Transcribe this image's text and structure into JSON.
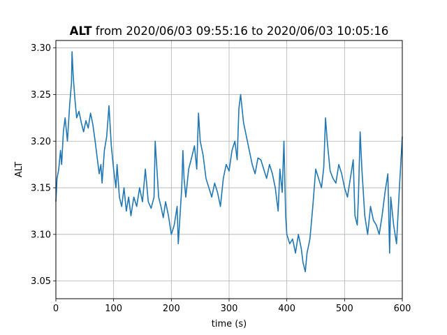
{
  "chart_data": {
    "type": "line",
    "title": {
      "bold": "ALT",
      "rest": " from 2020/06/03 09:55:16 to 2020/06/03 10:05:16"
    },
    "xlabel": "time (s)",
    "ylabel": "ALT",
    "xlim": [
      0,
      600
    ],
    "ylim": [
      3.031,
      3.308
    ],
    "xticks": [
      0,
      100,
      200,
      300,
      400,
      500,
      600
    ],
    "yticks": [
      3.05,
      3.1,
      3.15,
      3.2,
      3.25,
      3.3
    ],
    "ytick_labels": [
      "3.05",
      "3.10",
      "3.15",
      "3.20",
      "3.25",
      "3.30"
    ],
    "grid": true,
    "line_color": "#1f77b4",
    "series": [
      {
        "x": [
          0,
          2,
          5,
          8,
          10,
          13,
          16,
          20,
          24,
          27,
          28,
          30,
          33,
          36,
          40,
          44,
          48,
          52,
          56,
          60,
          64,
          68,
          72,
          75,
          78,
          80,
          84,
          88,
          92,
          96,
          100,
          102,
          104,
          106,
          110,
          114,
          118,
          122,
          126,
          130,
          135,
          140,
          145,
          150,
          155,
          160,
          165,
          170,
          172,
          175,
          178,
          182,
          186,
          190,
          195,
          200,
          205,
          210,
          212,
          215,
          218,
          220,
          222,
          225,
          230,
          235,
          240,
          244,
          247,
          250,
          255,
          260,
          265,
          270,
          275,
          280,
          285,
          290,
          295,
          300,
          305,
          310,
          314,
          317,
          320,
          325,
          330,
          335,
          340,
          345,
          350,
          355,
          360,
          365,
          370,
          375,
          380,
          385,
          388,
          392,
          395,
          398,
          400,
          405,
          410,
          415,
          420,
          425,
          428,
          432,
          435,
          440,
          445,
          450,
          455,
          460,
          464,
          467,
          470,
          475,
          480,
          485,
          490,
          495,
          500,
          505,
          510,
          515,
          518,
          522,
          524,
          527,
          530,
          535,
          540,
          545,
          550,
          555,
          560,
          565,
          570,
          575,
          578,
          580,
          585,
          590,
          595,
          600
        ],
        "y": [
          3.135,
          3.16,
          3.17,
          3.19,
          3.175,
          3.21,
          3.225,
          3.2,
          3.24,
          3.262,
          3.296,
          3.27,
          3.245,
          3.225,
          3.232,
          3.22,
          3.21,
          3.222,
          3.214,
          3.23,
          3.218,
          3.2,
          3.18,
          3.165,
          3.175,
          3.155,
          3.19,
          3.205,
          3.238,
          3.195,
          3.17,
          3.16,
          3.15,
          3.175,
          3.14,
          3.13,
          3.15,
          3.125,
          3.14,
          3.12,
          3.14,
          3.13,
          3.15,
          3.135,
          3.17,
          3.135,
          3.128,
          3.14,
          3.2,
          3.17,
          3.14,
          3.13,
          3.118,
          3.135,
          3.12,
          3.1,
          3.11,
          3.13,
          3.09,
          3.12,
          3.15,
          3.19,
          3.16,
          3.14,
          3.17,
          3.182,
          3.195,
          3.17,
          3.23,
          3.2,
          3.185,
          3.16,
          3.15,
          3.14,
          3.155,
          3.145,
          3.13,
          3.16,
          3.175,
          3.168,
          3.19,
          3.2,
          3.18,
          3.235,
          3.25,
          3.22,
          3.205,
          3.19,
          3.175,
          3.165,
          3.182,
          3.18,
          3.17,
          3.16,
          3.175,
          3.165,
          3.15,
          3.125,
          3.17,
          3.145,
          3.2,
          3.12,
          3.1,
          3.09,
          3.095,
          3.08,
          3.1,
          3.085,
          3.07,
          3.06,
          3.08,
          3.095,
          3.13,
          3.17,
          3.16,
          3.15,
          3.172,
          3.225,
          3.2,
          3.168,
          3.16,
          3.155,
          3.175,
          3.165,
          3.15,
          3.14,
          3.16,
          3.18,
          3.12,
          3.11,
          3.14,
          3.21,
          3.17,
          3.12,
          3.1,
          3.13,
          3.115,
          3.11,
          3.1,
          3.12,
          3.145,
          3.165,
          3.08,
          3.14,
          3.11,
          3.09,
          3.15,
          3.205
        ]
      }
    ]
  }
}
